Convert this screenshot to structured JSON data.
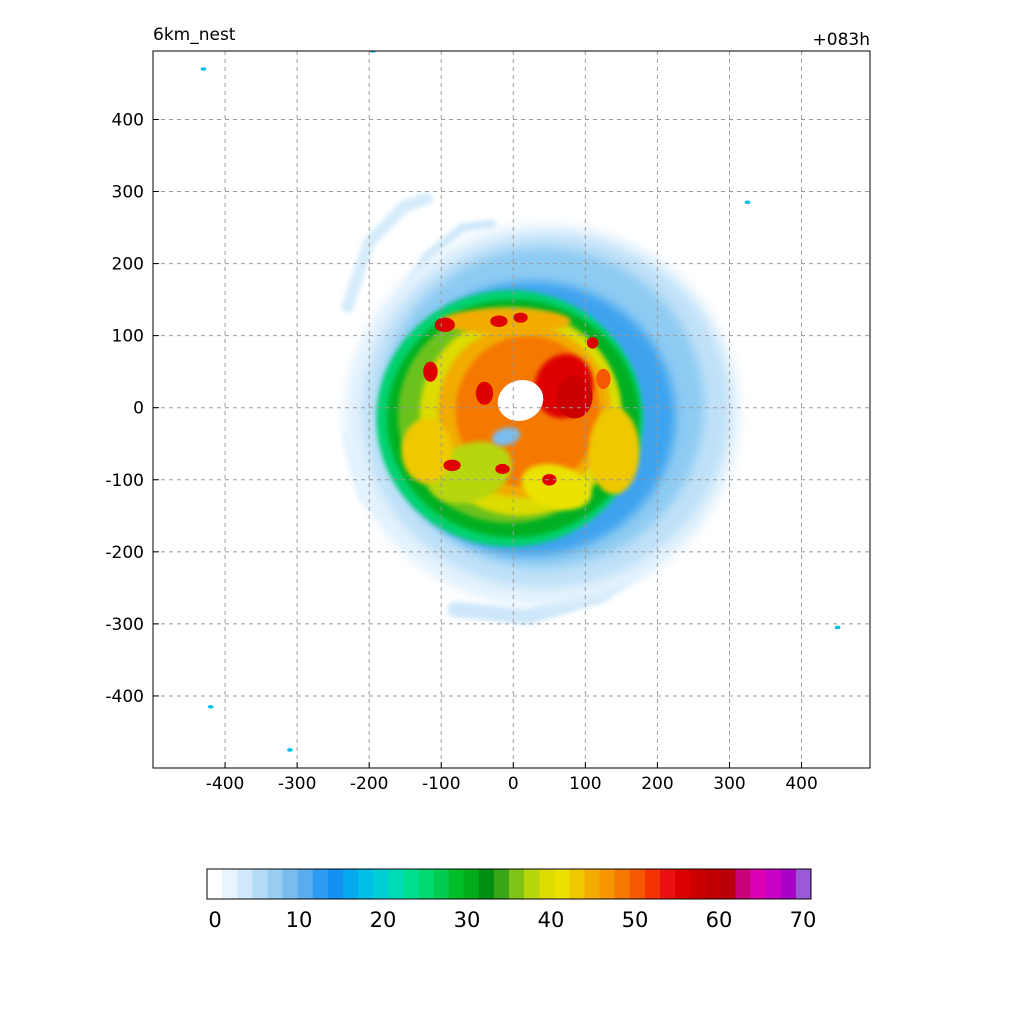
{
  "chart_data": {
    "type": "heatmap",
    "title": "6km_nest",
    "subtitle": "+083h",
    "xlabel": "",
    "ylabel": "",
    "xlim": [
      -500,
      495
    ],
    "ylim": [
      -500,
      495
    ],
    "grid": true,
    "x_ticks": [
      -400,
      -300,
      -200,
      -100,
      0,
      100,
      200,
      300,
      400
    ],
    "y_ticks": [
      400,
      300,
      200,
      100,
      0,
      -100,
      -200,
      -300,
      -400
    ],
    "x_tick_labels": [
      "-400",
      "-300",
      "-200",
      "-100",
      "0",
      "100",
      "200",
      "300",
      "400"
    ],
    "y_tick_labels": [
      "400",
      "300",
      "200",
      "100",
      "0",
      "-100",
      "-200",
      "-300",
      "-400"
    ],
    "colorbar": {
      "orientation": "horizontal",
      "placement": "bottom",
      "min": 0,
      "max": 70,
      "step": 2,
      "tick_values": [
        0,
        10,
        20,
        30,
        40,
        50,
        60,
        70
      ],
      "tick_labels": [
        "0",
        "10",
        "20",
        "30",
        "40",
        "50",
        "60",
        "70"
      ],
      "colors": [
        "#ffffff",
        "#e8f5ff",
        "#cfe9fb",
        "#b4dcf7",
        "#97cdf3",
        "#79bdf0",
        "#58adf0",
        "#2f9cf2",
        "#1491f0",
        "#06a8ee",
        "#00bfe6",
        "#00cfd6",
        "#00dcb8",
        "#00e090",
        "#00d970",
        "#00cc52",
        "#00bd2a",
        "#00ac1a",
        "#008f10",
        "#3aa516",
        "#80c419",
        "#b8d60c",
        "#dcdc00",
        "#ece200",
        "#f0c800",
        "#f2ac00",
        "#f59500",
        "#f57800",
        "#f55800",
        "#f53300",
        "#ea1010",
        "#de0000",
        "#cc0000",
        "#c00000",
        "#b8000a",
        "#c8007a",
        "#dc00b4",
        "#c800c8",
        "#a800c4",
        "#9a5ad6"
      ]
    },
    "description_fields": {
      "eye_center": [
        20,
        15
      ],
      "max_value_region": [
        80,
        20
      ],
      "radius_of_main_shield": 280
    }
  }
}
